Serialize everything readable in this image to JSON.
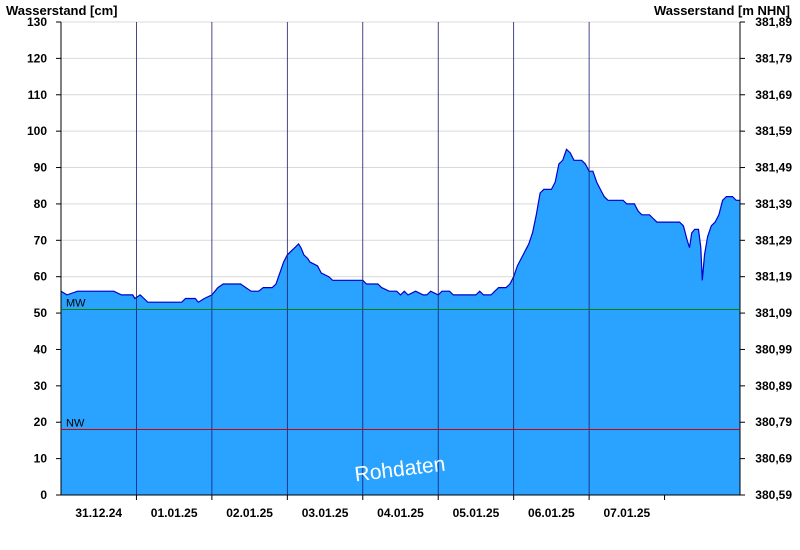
{
  "chart_data": {
    "type": "area",
    "y_left": {
      "label": "Wasserstand [cm]",
      "min": 0,
      "max": 130,
      "step": 10,
      "ticks": [
        "0",
        "10",
        "20",
        "30",
        "40",
        "50",
        "60",
        "70",
        "80",
        "90",
        "100",
        "110",
        "120",
        "130"
      ]
    },
    "y_right": {
      "label": "Wasserstand [m NHN]",
      "ticks": [
        "380,59",
        "380,69",
        "380,79",
        "380,89",
        "380,99",
        "381,09",
        "381,19",
        "381,29",
        "381,39",
        "381,49",
        "381,59",
        "381,69",
        "381,79",
        "381,89"
      ]
    },
    "x": {
      "categories": [
        "31.12.24",
        "01.01.25",
        "02.01.25",
        "03.01.25",
        "04.01.25",
        "05.01.25",
        "06.01.25",
        "07.01.25"
      ],
      "range_days": [
        0,
        8
      ]
    },
    "reference_lines": [
      {
        "label": "MW",
        "value": 51,
        "color": "#008000"
      },
      {
        "label": "NW",
        "value": 18,
        "color": "#cc0000"
      }
    ],
    "watermark": "Rohdaten",
    "colors": {
      "fill": "#29a3ff",
      "line": "#0000cc",
      "grid": "#000000"
    },
    "series": [
      {
        "points": [
          [
            0.0,
            56
          ],
          [
            0.08,
            55
          ],
          [
            0.22,
            56
          ],
          [
            0.7,
            56
          ],
          [
            0.8,
            55
          ],
          [
            0.95,
            55
          ],
          [
            0.98,
            54
          ],
          [
            1.05,
            55
          ],
          [
            1.1,
            54
          ],
          [
            1.15,
            53
          ],
          [
            1.6,
            53
          ],
          [
            1.65,
            54
          ],
          [
            1.78,
            54
          ],
          [
            1.82,
            53
          ],
          [
            1.9,
            54
          ],
          [
            2.0,
            55
          ],
          [
            2.08,
            57
          ],
          [
            2.15,
            58
          ],
          [
            2.38,
            58
          ],
          [
            2.45,
            57
          ],
          [
            2.52,
            56
          ],
          [
            2.62,
            56
          ],
          [
            2.68,
            57
          ],
          [
            2.8,
            57
          ],
          [
            2.85,
            58
          ],
          [
            2.9,
            61
          ],
          [
            2.95,
            64
          ],
          [
            3.0,
            66
          ],
          [
            3.05,
            67
          ],
          [
            3.1,
            68
          ],
          [
            3.15,
            69
          ],
          [
            3.18,
            68
          ],
          [
            3.22,
            66
          ],
          [
            3.27,
            65
          ],
          [
            3.3,
            64
          ],
          [
            3.4,
            63
          ],
          [
            3.45,
            61
          ],
          [
            3.55,
            60
          ],
          [
            3.6,
            59
          ],
          [
            4.0,
            59
          ],
          [
            4.05,
            58
          ],
          [
            4.2,
            58
          ],
          [
            4.25,
            57
          ],
          [
            4.35,
            56
          ],
          [
            4.45,
            56
          ],
          [
            4.5,
            55
          ],
          [
            4.55,
            56
          ],
          [
            4.6,
            55
          ],
          [
            4.7,
            56
          ],
          [
            4.8,
            55
          ],
          [
            4.85,
            55
          ],
          [
            4.9,
            56
          ],
          [
            5.0,
            55
          ],
          [
            5.05,
            56
          ],
          [
            5.15,
            56
          ],
          [
            5.2,
            55
          ],
          [
            5.5,
            55
          ],
          [
            5.55,
            56
          ],
          [
            5.6,
            55
          ],
          [
            5.7,
            55
          ],
          [
            5.75,
            56
          ],
          [
            5.8,
            57
          ],
          [
            5.9,
            57
          ],
          [
            5.95,
            58
          ],
          [
            6.0,
            60
          ],
          [
            6.05,
            63
          ],
          [
            6.1,
            65
          ],
          [
            6.15,
            67
          ],
          [
            6.2,
            69
          ],
          [
            6.25,
            72
          ],
          [
            6.3,
            77
          ],
          [
            6.35,
            83
          ],
          [
            6.4,
            84
          ],
          [
            6.5,
            84
          ],
          [
            6.55,
            86
          ],
          [
            6.6,
            91
          ],
          [
            6.65,
            92
          ],
          [
            6.7,
            95
          ],
          [
            6.75,
            94
          ],
          [
            6.8,
            92
          ],
          [
            6.9,
            92
          ],
          [
            6.95,
            91
          ],
          [
            7.0,
            89
          ],
          [
            7.05,
            89
          ],
          [
            7.1,
            86
          ],
          [
            7.15,
            84
          ],
          [
            7.2,
            82
          ],
          [
            7.25,
            81
          ],
          [
            7.45,
            81
          ],
          [
            7.5,
            80
          ],
          [
            7.6,
            80
          ],
          [
            7.65,
            78
          ],
          [
            7.7,
            77
          ],
          [
            7.8,
            77
          ],
          [
            7.85,
            76
          ],
          [
            7.9,
            75
          ],
          [
            8.2,
            75
          ],
          [
            8.25,
            74
          ],
          [
            8.3,
            70
          ],
          [
            8.33,
            68
          ],
          [
            8.36,
            72
          ],
          [
            8.4,
            73
          ],
          [
            8.45,
            73
          ],
          [
            8.48,
            68
          ],
          [
            8.5,
            59
          ],
          [
            8.53,
            66
          ],
          [
            8.57,
            71
          ],
          [
            8.62,
            74
          ],
          [
            8.67,
            75
          ],
          [
            8.72,
            77
          ],
          [
            8.77,
            81
          ],
          [
            8.82,
            82
          ],
          [
            8.9,
            82
          ],
          [
            8.95,
            81
          ],
          [
            9.0,
            81
          ]
        ]
      }
    ]
  }
}
